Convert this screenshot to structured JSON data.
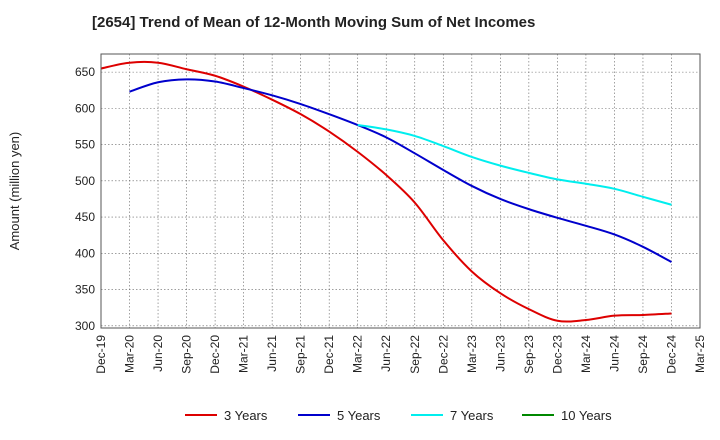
{
  "chart_data": {
    "type": "line",
    "title": "[2654]  Trend of Mean of 12-Month Moving Sum of Net Incomes",
    "xlabel": "",
    "ylabel": "Amount (million yen)",
    "ylim": [
      297,
      675
    ],
    "yticks": [
      300,
      350,
      400,
      450,
      500,
      550,
      600,
      650
    ],
    "categories": [
      "Dec-19",
      "Mar-20",
      "Jun-20",
      "Sep-20",
      "Dec-20",
      "Mar-21",
      "Jun-21",
      "Sep-21",
      "Dec-21",
      "Mar-22",
      "Jun-22",
      "Sep-22",
      "Dec-22",
      "Mar-23",
      "Jun-23",
      "Sep-23",
      "Dec-23",
      "Mar-24",
      "Jun-24",
      "Sep-24",
      "Dec-24",
      "Mar-25"
    ],
    "grid": true,
    "legend_position": "bottom",
    "series": [
      {
        "name": "3 Years",
        "color": "#dd0000",
        "values": [
          655,
          663,
          663,
          654,
          645,
          630,
          612,
          592,
          568,
          540,
          508,
          470,
          418,
          375,
          345,
          323,
          307,
          308,
          314,
          315,
          317,
          null
        ]
      },
      {
        "name": "5 Years",
        "color": "#0000cc",
        "values": [
          null,
          623,
          636,
          640,
          637,
          628,
          618,
          606,
          592,
          577,
          560,
          538,
          515,
          493,
          475,
          461,
          449,
          438,
          426,
          409,
          388,
          null
        ]
      },
      {
        "name": "7 Years",
        "color": "#00eeee",
        "values": [
          null,
          null,
          null,
          null,
          null,
          null,
          null,
          null,
          null,
          577,
          571,
          562,
          548,
          533,
          521,
          511,
          502,
          496,
          489,
          478,
          467,
          null
        ]
      },
      {
        "name": "10 Years",
        "color": "#008800",
        "values": [
          null,
          null,
          null,
          null,
          null,
          null,
          null,
          null,
          null,
          null,
          null,
          null,
          null,
          null,
          null,
          null,
          null,
          null,
          null,
          null,
          null,
          null
        ]
      }
    ]
  }
}
